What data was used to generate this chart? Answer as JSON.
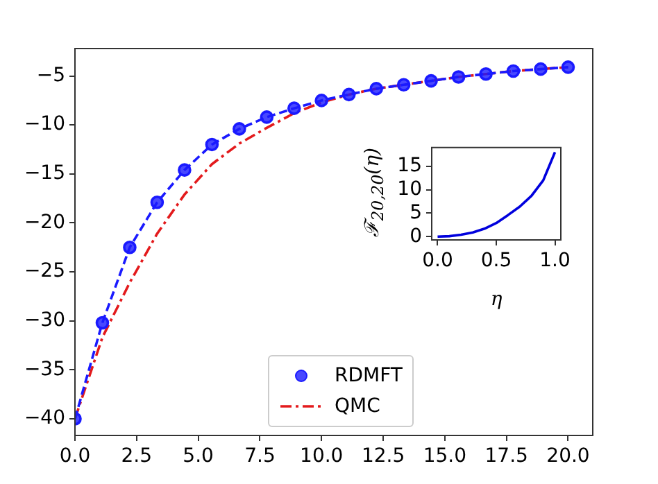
{
  "chart_data": [
    {
      "type": "line",
      "x": [
        0,
        1.111,
        2.222,
        3.333,
        4.444,
        5.556,
        6.667,
        7.778,
        8.889,
        10,
        11.111,
        12.222,
        13.333,
        14.444,
        15.556,
        16.667,
        17.778,
        18.889,
        20
      ],
      "series": [
        {
          "name": "RDMFT",
          "color": "#1a1aff",
          "marker": "circle",
          "line_style": "dashed",
          "values": [
            -40,
            -30.2,
            -22.5,
            -17.9,
            -14.6,
            -12.0,
            -10.4,
            -9.2,
            -8.3,
            -7.5,
            -6.9,
            -6.3,
            -5.9,
            -5.5,
            -5.1,
            -4.8,
            -4.5,
            -4.3,
            -4.1
          ]
        },
        {
          "name": "QMC",
          "color": "#e31a1c",
          "marker": "none",
          "line_style": "dashdot",
          "values": [
            -40,
            -31.7,
            -26.1,
            -21.1,
            -17.1,
            -14.0,
            -11.9,
            -10.3,
            -8.8,
            -7.7,
            -6.9,
            -6.3,
            -5.9,
            -5.5,
            -5.1,
            -4.8,
            -4.5,
            -4.3,
            -4.1
          ]
        }
      ],
      "xlim": [
        0,
        21
      ],
      "ylim": [
        -41.7,
        -2.2
      ],
      "xticks": [
        {
          "value": 0,
          "label": "0.0"
        },
        {
          "value": 2.5,
          "label": "2.5"
        },
        {
          "value": 5,
          "label": "5.0"
        },
        {
          "value": 7.5,
          "label": "7.5"
        },
        {
          "value": 10,
          "label": "10.0"
        },
        {
          "value": 12.5,
          "label": "12.5"
        },
        {
          "value": 15,
          "label": "15.0"
        },
        {
          "value": 17.5,
          "label": "17.5"
        },
        {
          "value": 20,
          "label": "20.0"
        }
      ],
      "yticks": [
        {
          "value": -40,
          "label": "−40"
        },
        {
          "value": -35,
          "label": "−35"
        },
        {
          "value": -30,
          "label": "−30"
        },
        {
          "value": -25,
          "label": "−25"
        },
        {
          "value": -20,
          "label": "−20"
        },
        {
          "value": -15,
          "label": "−15"
        },
        {
          "value": -10,
          "label": "−10"
        },
        {
          "value": -5,
          "label": "−5"
        }
      ],
      "grid": false,
      "legend": "bottom"
    },
    {
      "type": "line",
      "x": [
        0,
        0.1,
        0.2,
        0.3,
        0.4,
        0.5,
        0.6,
        0.7,
        0.8,
        0.9,
        1.0
      ],
      "series": [
        {
          "color": "#0000dd",
          "values": [
            0,
            0.1,
            0.4,
            0.9,
            1.7,
            2.9,
            4.6,
            6.4,
            8.7,
            12.0,
            18.0
          ]
        }
      ],
      "xlabel": "η",
      "ylabel": "ℱ$_{20,20}$(η)",
      "xlim": [
        -0.05,
        1.05
      ],
      "ylim": [
        -0.7,
        19
      ],
      "xticks": [
        {
          "value": 0,
          "label": "0.0"
        },
        {
          "value": 0.5,
          "label": "0.5"
        },
        {
          "value": 1,
          "label": "1.0"
        }
      ],
      "yticks": [
        0,
        5,
        10,
        15
      ],
      "grid": false
    }
  ]
}
